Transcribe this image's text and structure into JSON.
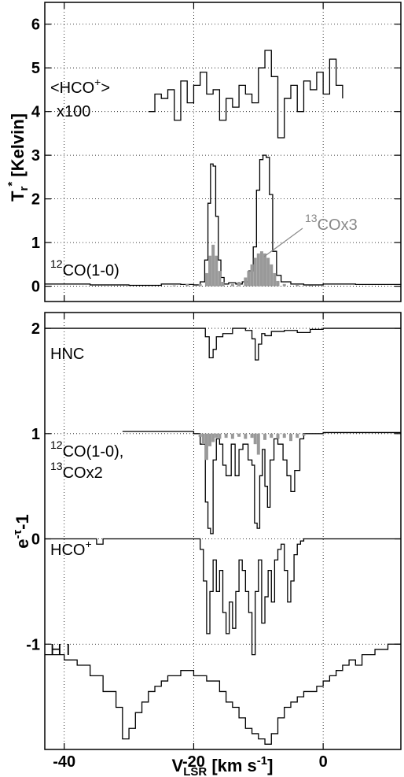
{
  "chart_data": [
    {
      "type": "line",
      "panel": "top",
      "xlim": [
        -43,
        12
      ],
      "ylim": [
        -0.35,
        6.5
      ],
      "xticks": [
        -40,
        -20,
        0
      ],
      "yticks": [
        0,
        1,
        2,
        3,
        4,
        5,
        6
      ],
      "grid": true,
      "ylabel_main": "T",
      "ylabel_sub": "r",
      "ylabel_sup": "*",
      "ylabel_rest": " [Kelvin]",
      "annotations": {
        "hco_line1": "<HCO",
        "hco_sup": "+",
        "hco_close": ">",
        "hco_line2": "x100",
        "co12_sup": "12",
        "co12_rest": "CO(1-0)",
        "co13_sup": "13",
        "co13_rest": "COx3"
      },
      "series": [
        {
          "color": "#000000",
          "x": [
            -43,
            -36,
            -30,
            -25,
            -22,
            -20,
            -19,
            -18.3,
            -17.8,
            -17.4,
            -17.0,
            -16.6,
            -16.2,
            -15.8,
            -15.3,
            -14.6,
            -13.5,
            -12.5,
            -11.5,
            -10.8,
            -10.3,
            -9.8,
            -9.3,
            -8.8,
            -8.3,
            -7.8,
            -7.2,
            -6.5,
            -5,
            -3,
            0,
            5,
            12
          ],
          "y": [
            0.05,
            0.03,
            0.02,
            0.05,
            0.04,
            0.03,
            0.1,
            0.6,
            1.9,
            2.8,
            2.75,
            1.6,
            0.6,
            0.2,
            0.05,
            0.08,
            0.05,
            0.1,
            0.35,
            0.9,
            2.2,
            2.9,
            3.0,
            2.95,
            2.1,
            0.8,
            0.25,
            0.1,
            0.05,
            0.03,
            0.05,
            0.04,
            0.03
          ]
        },
        {
          "color": "#000000",
          "x": [
            -27,
            -26,
            -25,
            -24,
            -23,
            -22,
            -21,
            -20,
            -19,
            -18,
            -17,
            -16,
            -15,
            -14,
            -13,
            -12,
            -11,
            -10,
            -9,
            -8,
            -7,
            -6,
            -5,
            -4,
            -3,
            -2,
            -1,
            0,
            1,
            2,
            3
          ],
          "y": [
            4.0,
            4.4,
            4.3,
            4.5,
            3.8,
            4.7,
            4.2,
            4.6,
            4.9,
            4.4,
            4.5,
            3.8,
            4.3,
            4.1,
            4.6,
            4.4,
            4.2,
            5.0,
            5.4,
            4.8,
            3.4,
            4.3,
            4.6,
            4.0,
            4.7,
            4.5,
            4.9,
            4.4,
            5.2,
            4.6,
            4.3
          ]
        },
        {
          "color": "#999999",
          "kind": "bars",
          "x": [
            -23,
            -21,
            -19,
            -18,
            -17.5,
            -17,
            -16.5,
            -16,
            -15.5,
            -14,
            -13,
            -12,
            -11.5,
            -11,
            -10.5,
            -10,
            -9.5,
            -9,
            -8.5,
            -8,
            -7.5,
            -7,
            -6,
            -4,
            -2
          ],
          "y": [
            0.02,
            0.05,
            0.05,
            0.3,
            0.7,
            0.95,
            0.7,
            0.35,
            0.1,
            0.05,
            0.1,
            0.2,
            0.35,
            0.5,
            0.65,
            0.75,
            0.8,
            0.75,
            0.65,
            0.5,
            0.3,
            0.12,
            0.05,
            0.03,
            0.02
          ]
        }
      ]
    },
    {
      "type": "line",
      "panel": "bottom",
      "xlim": [
        -43,
        12
      ],
      "ylim": [
        -2.0,
        2.15
      ],
      "xticks": [
        -40,
        -20,
        0
      ],
      "xticklabels": [
        "-40",
        "-20",
        "0"
      ],
      "yticks": [
        -1,
        0,
        1,
        2
      ],
      "grid": true,
      "ylabel_main": "e",
      "ylabel_sup": "-τ",
      "ylabel_rest": "-1",
      "xlabel_main": "V",
      "xlabel_sub": "LSR",
      "xlabel_rest1": " [km s",
      "xlabel_sup": "-1",
      "xlabel_rest2": "]",
      "annotations": {
        "hnc": "HNC",
        "co12_sup": "12",
        "co12_rest": "CO(1-0),",
        "co13_sup": "13",
        "co13_rest": "COx2",
        "hco_main": "HCO",
        "hco_sup": "+",
        "hi": "H I"
      },
      "series": [
        {
          "color": "#000000",
          "x": [
            -43,
            -25,
            -19,
            -18.2,
            -17.6,
            -17.0,
            -16.5,
            -15.5,
            -14,
            -12,
            -11,
            -10.5,
            -10.0,
            -9.5,
            -9,
            -8,
            -6,
            -4,
            -2,
            0,
            12
          ],
          "y": [
            2.0,
            2.0,
            2.0,
            1.92,
            1.72,
            1.8,
            1.92,
            1.95,
            2.0,
            1.98,
            1.9,
            1.7,
            1.85,
            1.95,
            1.93,
            1.97,
            1.98,
            1.96,
            1.99,
            2.0,
            2.0
          ]
        },
        {
          "color": "#000000",
          "x": [
            -31,
            -25,
            -20,
            -19,
            -18.2,
            -17.8,
            -17.4,
            -17.0,
            -16.5,
            -16.0,
            -15.5,
            -15,
            -14.2,
            -13.6,
            -13,
            -12.4,
            -11.6,
            -11,
            -10.6,
            -10.2,
            -9.8,
            -9.4,
            -9,
            -8.6,
            -8.2,
            -7.6,
            -7,
            -6.2,
            -5.6,
            -5,
            -4.4,
            -3.6,
            -3,
            0,
            12
          ],
          "y": [
            1.02,
            1.02,
            1.0,
            0.9,
            0.35,
            0.1,
            0.05,
            0.75,
            0.95,
            0.9,
            0.7,
            0.6,
            0.9,
            0.6,
            0.85,
            0.9,
            0.75,
            0.7,
            0.15,
            0.1,
            0.6,
            0.85,
            0.5,
            0.3,
            0.75,
            0.95,
            0.9,
            0.75,
            0.6,
            0.45,
            0.65,
            0.95,
            1.0,
            1.01,
            1.01
          ]
        },
        {
          "color": "#999999",
          "kind": "bars",
          "x": [
            -19,
            -18.5,
            -18,
            -17.5,
            -17,
            -16.5,
            -16,
            -15,
            -14,
            -13,
            -12,
            -11,
            -10.5,
            -10,
            -9,
            -8,
            -7,
            -6,
            -5,
            -4,
            -3
          ],
          "y": [
            0.97,
            0.9,
            0.75,
            0.88,
            0.92,
            0.96,
            0.95,
            0.96,
            0.95,
            0.97,
            0.95,
            0.96,
            0.9,
            0.8,
            0.94,
            0.96,
            0.95,
            0.96,
            0.93,
            0.96,
            0.98
          ]
        },
        {
          "color": "#000000",
          "x": [
            -43,
            -36,
            -35,
            -34,
            -30,
            -25,
            -20,
            -19,
            -18.5,
            -18,
            -17.5,
            -17,
            -16.5,
            -16,
            -15.5,
            -15,
            -14.5,
            -14,
            -13.5,
            -13,
            -12.5,
            -12,
            -11.5,
            -11,
            -10.5,
            -10,
            -9.5,
            -9,
            -8.5,
            -8,
            -7.5,
            -7,
            -6.5,
            -6,
            -5.5,
            -5,
            -4.5,
            -4,
            -3.5,
            -3,
            0,
            12
          ],
          "y": [
            0.0,
            0.0,
            -0.05,
            0.0,
            0.0,
            0.0,
            0.0,
            -0.1,
            -0.4,
            -0.9,
            -0.5,
            -0.2,
            -0.5,
            -0.3,
            -0.7,
            -0.9,
            -0.6,
            -0.85,
            -0.5,
            -0.2,
            -0.3,
            -0.5,
            -0.7,
            -1.1,
            -0.5,
            -0.2,
            -0.8,
            -0.55,
            -0.3,
            -0.6,
            -0.2,
            -0.1,
            -0.05,
            -0.3,
            -0.6,
            -0.4,
            -0.15,
            -0.05,
            -0.02,
            0.0,
            0.0,
            0.0
          ]
        },
        {
          "color": "#000000",
          "x": [
            -43,
            -40,
            -38,
            -36,
            -34,
            -32,
            -31,
            -30,
            -29,
            -28,
            -27,
            -26,
            -25,
            -24,
            -22,
            -20,
            -18,
            -16,
            -15,
            -14,
            -13,
            -12,
            -11,
            -10,
            -9,
            -8,
            -7,
            -6,
            -5,
            -4,
            -3,
            -2,
            -1,
            0,
            1,
            2,
            3,
            4,
            5,
            6,
            8,
            10,
            12
          ],
          "y": [
            -1.1,
            -1.15,
            -1.2,
            -1.3,
            -1.45,
            -1.6,
            -1.9,
            -1.8,
            -1.65,
            -1.55,
            -1.45,
            -1.4,
            -1.35,
            -1.3,
            -1.25,
            -1.3,
            -1.35,
            -1.45,
            -1.55,
            -1.6,
            -1.7,
            -1.8,
            -1.85,
            -1.9,
            -1.95,
            -1.85,
            -1.7,
            -1.6,
            -1.55,
            -1.5,
            -1.45,
            -1.45,
            -1.4,
            -1.35,
            -1.3,
            -1.25,
            -1.2,
            -1.15,
            -1.2,
            -1.1,
            -1.05,
            -1.0,
            -1.0
          ]
        }
      ]
    }
  ]
}
